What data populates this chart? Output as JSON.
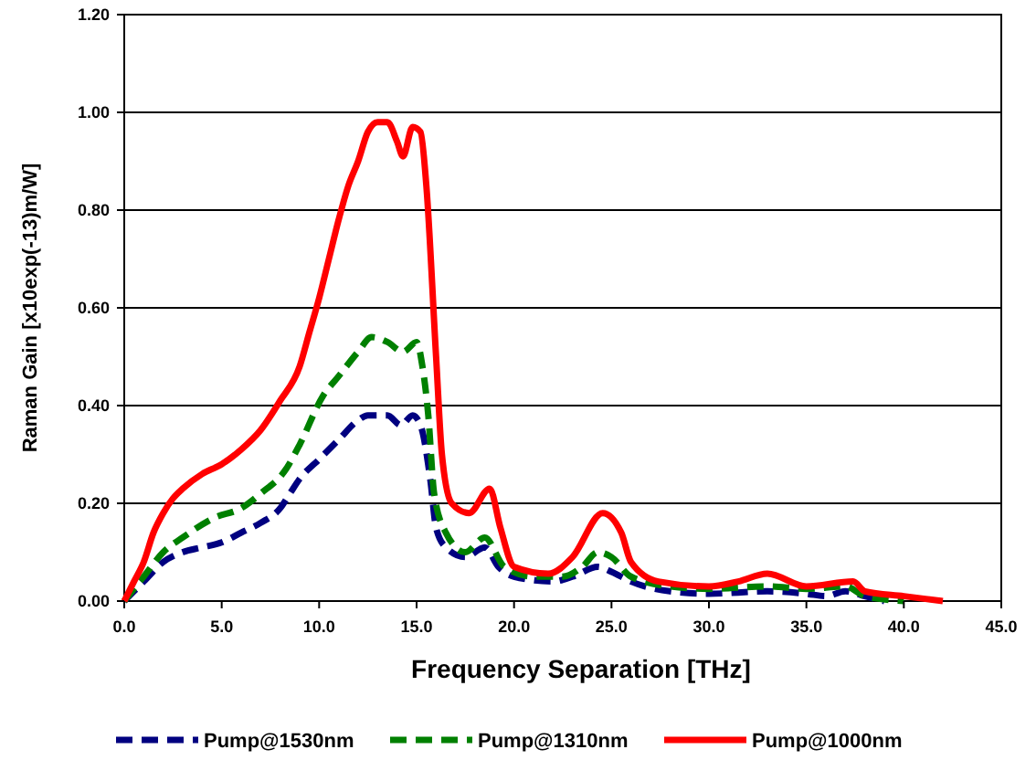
{
  "chart_data": {
    "type": "line",
    "xlabel": "Frequency Separation [THz]",
    "ylabel": "Raman Gain [x10exp(-13)m/W]",
    "xlim": [
      0,
      45
    ],
    "xticks": [
      {
        "value": 0,
        "label": "0.0"
      },
      {
        "value": 5,
        "label": "5.0"
      },
      {
        "value": 10,
        "label": "10.0"
      },
      {
        "value": 15,
        "label": "15.0"
      },
      {
        "value": 20,
        "label": "20.0"
      },
      {
        "value": 25,
        "label": "25.0"
      },
      {
        "value": 30,
        "label": "30.0"
      },
      {
        "value": 35,
        "label": "35.0"
      },
      {
        "value": 40,
        "label": "40.0"
      },
      {
        "value": 45,
        "label": "45.0"
      }
    ],
    "ylim": [
      0,
      1.2
    ],
    "yticks": [
      {
        "value": 0,
        "label": "0.00"
      },
      {
        "value": 0.2,
        "label": "0.20"
      },
      {
        "value": 0.4,
        "label": "0.40"
      },
      {
        "value": 0.6,
        "label": "0.60"
      },
      {
        "value": 0.8,
        "label": "0.80"
      },
      {
        "value": 1,
        "label": "1.00"
      },
      {
        "value": 1.2,
        "label": "1.20"
      }
    ],
    "grid": "y",
    "legend": "bottom",
    "series": [
      {
        "name": "Pump@1530nm",
        "color": "#000080",
        "line_style": "dashed",
        "x": [
          0,
          1,
          2,
          3,
          4,
          5,
          6,
          7,
          8,
          8.5,
          9,
          10,
          11,
          12,
          12.5,
          13.5,
          14.2,
          14.8,
          15.2,
          15.7,
          16,
          16.5,
          17.5,
          18.5,
          19.2,
          20,
          22,
          23,
          24.3,
          25,
          26,
          28,
          30,
          33,
          35,
          36,
          37,
          38,
          39
        ],
        "values": [
          0,
          0.04,
          0.08,
          0.1,
          0.11,
          0.12,
          0.14,
          0.16,
          0.19,
          0.22,
          0.25,
          0.29,
          0.33,
          0.37,
          0.38,
          0.38,
          0.36,
          0.38,
          0.36,
          0.25,
          0.15,
          0.11,
          0.09,
          0.11,
          0.07,
          0.05,
          0.04,
          0.05,
          0.07,
          0.06,
          0.04,
          0.02,
          0.015,
          0.02,
          0.015,
          0.01,
          0.02,
          0.01,
          0
        ]
      },
      {
        "name": "Pump@1310nm",
        "color": "#008000",
        "line_style": "dashed",
        "x": [
          0,
          1,
          2,
          3,
          4.6,
          6,
          7,
          8.3,
          9,
          10.2,
          11,
          12,
          12.7,
          13.5,
          14.3,
          15,
          15.3,
          15.6,
          15.9,
          16.5,
          17.5,
          18.5,
          19.5,
          21,
          22.5,
          23.5,
          24.3,
          25,
          26,
          28,
          30,
          33,
          35,
          37,
          38,
          40
        ],
        "values": [
          0,
          0.05,
          0.1,
          0.13,
          0.17,
          0.19,
          0.22,
          0.27,
          0.32,
          0.42,
          0.46,
          0.51,
          0.54,
          0.53,
          0.51,
          0.53,
          0.48,
          0.38,
          0.22,
          0.14,
          0.1,
          0.13,
          0.07,
          0.05,
          0.05,
          0.07,
          0.1,
          0.09,
          0.05,
          0.03,
          0.025,
          0.03,
          0.025,
          0.03,
          0.01,
          0
        ]
      },
      {
        "name": "Pump@1000nm",
        "color": "#ff0000",
        "line_style": "solid",
        "x": [
          0,
          0.5,
          1,
          1.5,
          2,
          2.5,
          3,
          4,
          5,
          6,
          7,
          8,
          9,
          9.5,
          10,
          10.5,
          11,
          11.5,
          12,
          12.5,
          13,
          13.5,
          14,
          14.3,
          14.8,
          15.2,
          15.5,
          16,
          16.3,
          16.8,
          17.7,
          18.75,
          19.3,
          20,
          21.75,
          23,
          24.55,
          25.5,
          26,
          27.4,
          30,
          31.5,
          33,
          35,
          37.4,
          38,
          40,
          42
        ],
        "values": [
          0,
          0.04,
          0.08,
          0.14,
          0.18,
          0.21,
          0.23,
          0.26,
          0.28,
          0.31,
          0.35,
          0.41,
          0.48,
          0.55,
          0.62,
          0.7,
          0.78,
          0.85,
          0.9,
          0.96,
          0.98,
          0.98,
          0.94,
          0.91,
          0.97,
          0.96,
          0.85,
          0.5,
          0.3,
          0.2,
          0.18,
          0.23,
          0.15,
          0.07,
          0.056,
          0.09,
          0.18,
          0.14,
          0.08,
          0.04,
          0.03,
          0.04,
          0.056,
          0.03,
          0.04,
          0.02,
          0.01,
          0
        ]
      }
    ]
  }
}
